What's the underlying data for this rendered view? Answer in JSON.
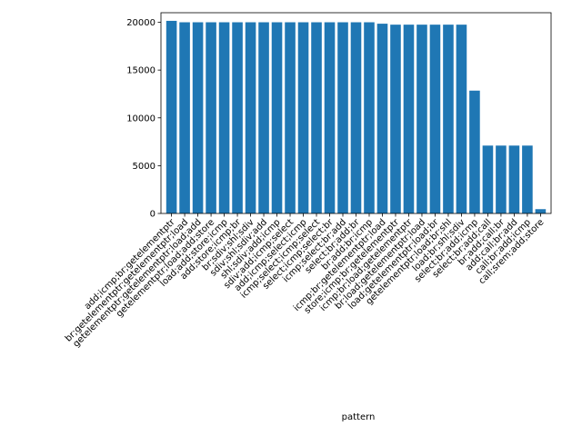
{
  "chart_data": {
    "type": "bar",
    "title": "",
    "xlabel": "pattern",
    "ylabel": "",
    "ylim": [
      0,
      21000
    ],
    "yticks": [
      0,
      5000,
      10000,
      15000,
      20000
    ],
    "grid": false,
    "bar_color": "#1f77b4",
    "categories": [
      "add;icmp;br;getelementptr",
      "br;getelementptr;getelementptr;load",
      "getelementptr;getelementptr;load;add",
      "getelementptr;load;add;store",
      "load;add;store;icmp",
      "add;store;icmp;br",
      "br;sdiv;shl;sdiv",
      "sdiv;shl;sdiv;add",
      "shl;sdiv;add;icmp",
      "sdiv;add;icmp;select",
      "add;icmp;select;icmp",
      "icmp;select;icmp;select",
      "select;icmp;select;br",
      "icmp;select;br;add",
      "select;br;add;br",
      "br;add;br;icmp",
      "icmp;br;getelementptr;load",
      "store;icmp;br;getelementptr",
      "icmp;br;load;getelementptr",
      "br;load;getelementptr;load",
      "load;getelementptr;load;br",
      "getelementptr;load;br;shl",
      "load;br;shl;sdiv",
      "select;br;add;icmp",
      "select;br;add;call",
      "br;add;call;br",
      "add;call;br;add",
      "call;br;add;icmp",
      "call;srem;add;store"
    ],
    "values": [
      20150,
      20000,
      20000,
      20000,
      20000,
      20000,
      20000,
      20000,
      20000,
      20000,
      20000,
      20000,
      20000,
      20000,
      20000,
      20000,
      19850,
      19750,
      19750,
      19750,
      19750,
      19750,
      19750,
      12850,
      7100,
      7100,
      7100,
      7100,
      450
    ]
  }
}
